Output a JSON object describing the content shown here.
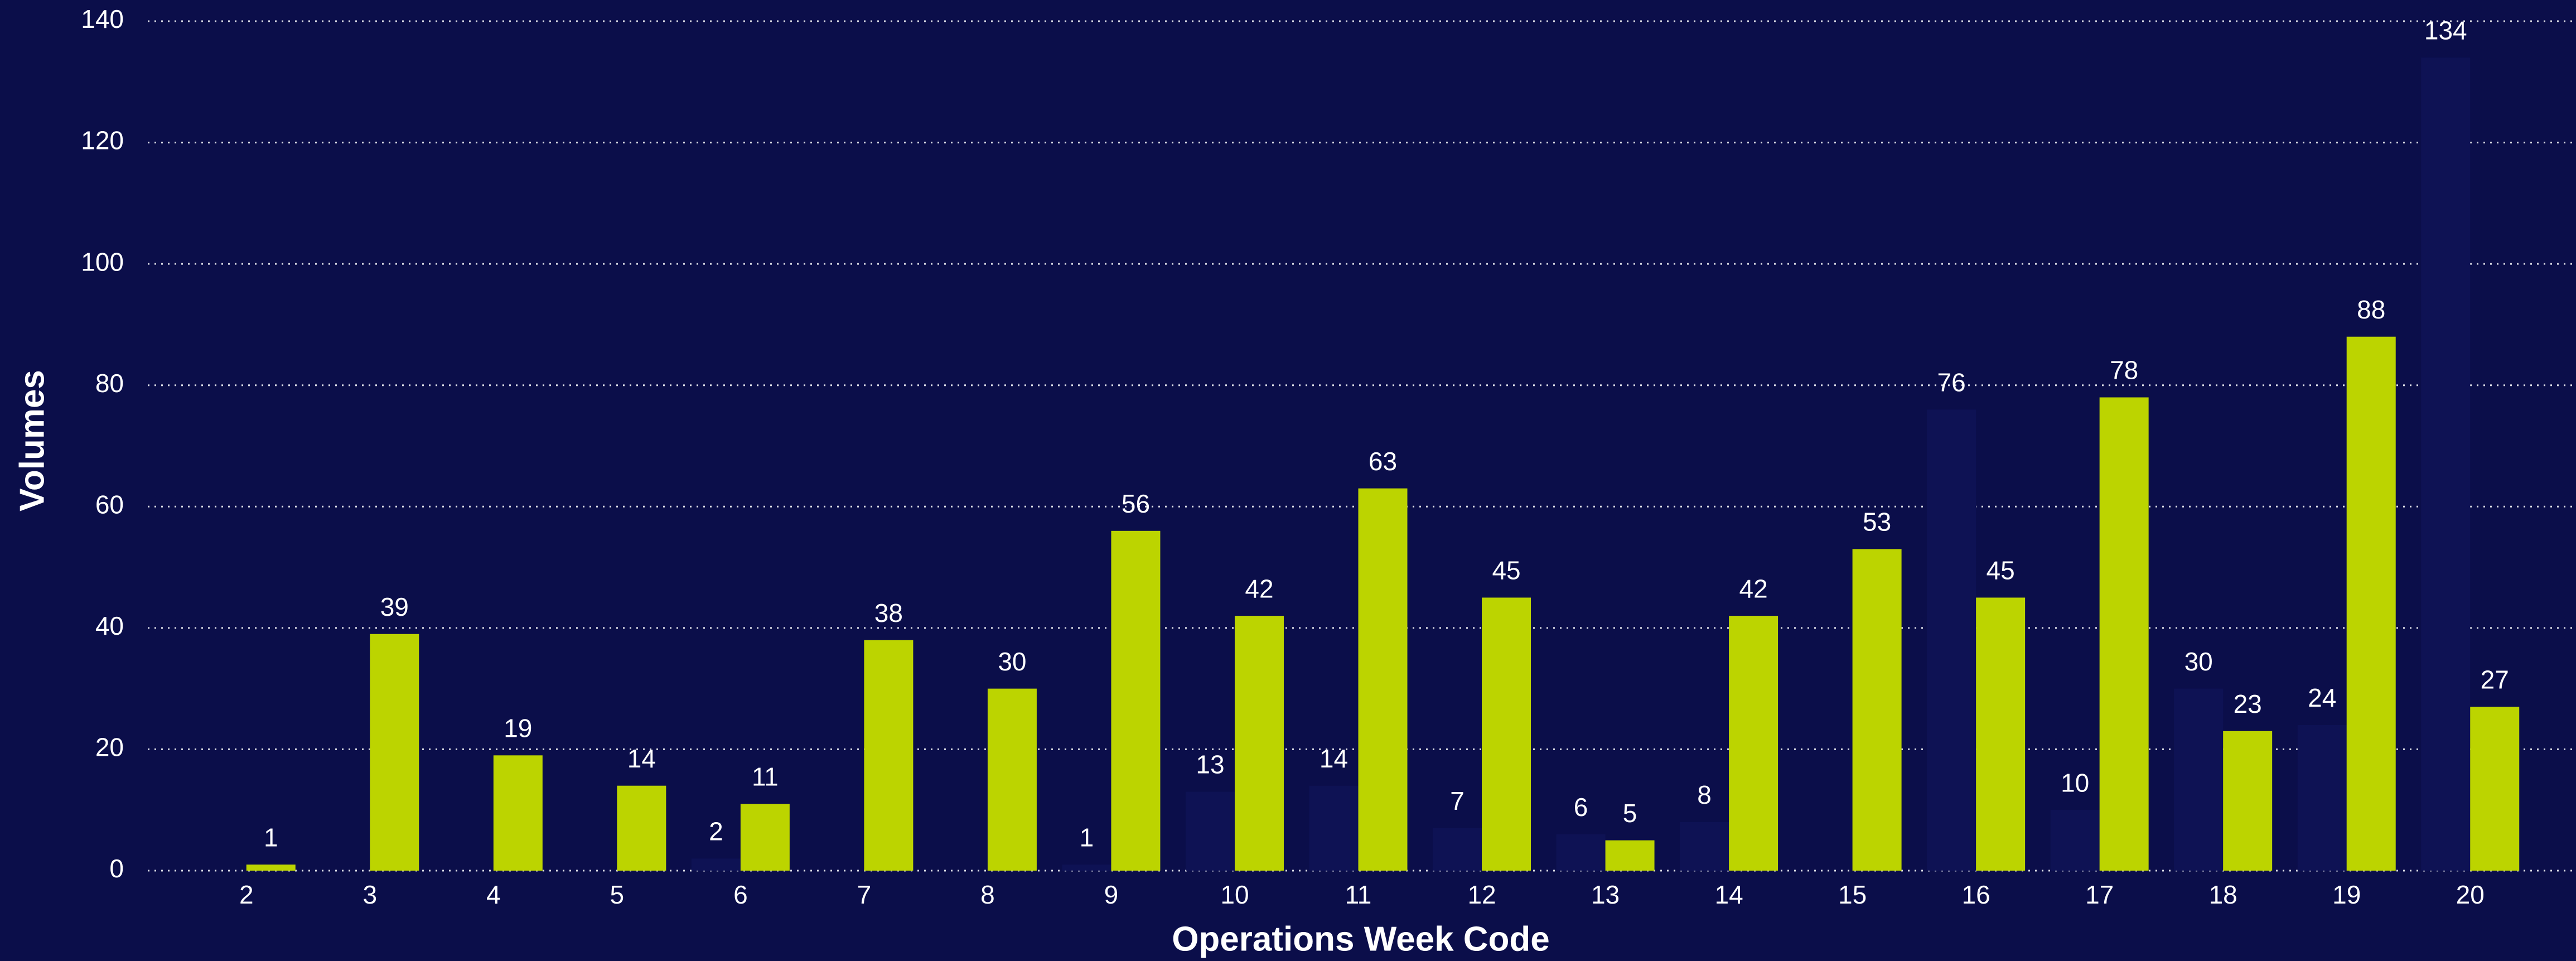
{
  "chart_data": {
    "type": "bar",
    "x_label": "Operations Week Code",
    "y_label": "Volumes",
    "categories": [
      "2",
      "3",
      "4",
      "5",
      "6",
      "7",
      "8",
      "9",
      "10",
      "11",
      "12",
      "13",
      "14",
      "15",
      "16",
      "17",
      "18",
      "19",
      "20"
    ],
    "series": [
      {
        "color": "#0e1254",
        "values": [
          null,
          null,
          null,
          null,
          2,
          null,
          null,
          1,
          13,
          14,
          7,
          6,
          8,
          null,
          76,
          10,
          30,
          24,
          134
        ]
      },
      {
        "color": "#bcd400",
        "values": [
          1,
          39,
          19,
          14,
          11,
          38,
          30,
          56,
          42,
          63,
          45,
          5,
          42,
          53,
          45,
          78,
          23,
          88,
          27
        ]
      }
    ],
    "ylim": [
      0,
      140
    ],
    "yticks": [
      0,
      20,
      40,
      60,
      80,
      100,
      120,
      140
    ],
    "grid": true
  }
}
